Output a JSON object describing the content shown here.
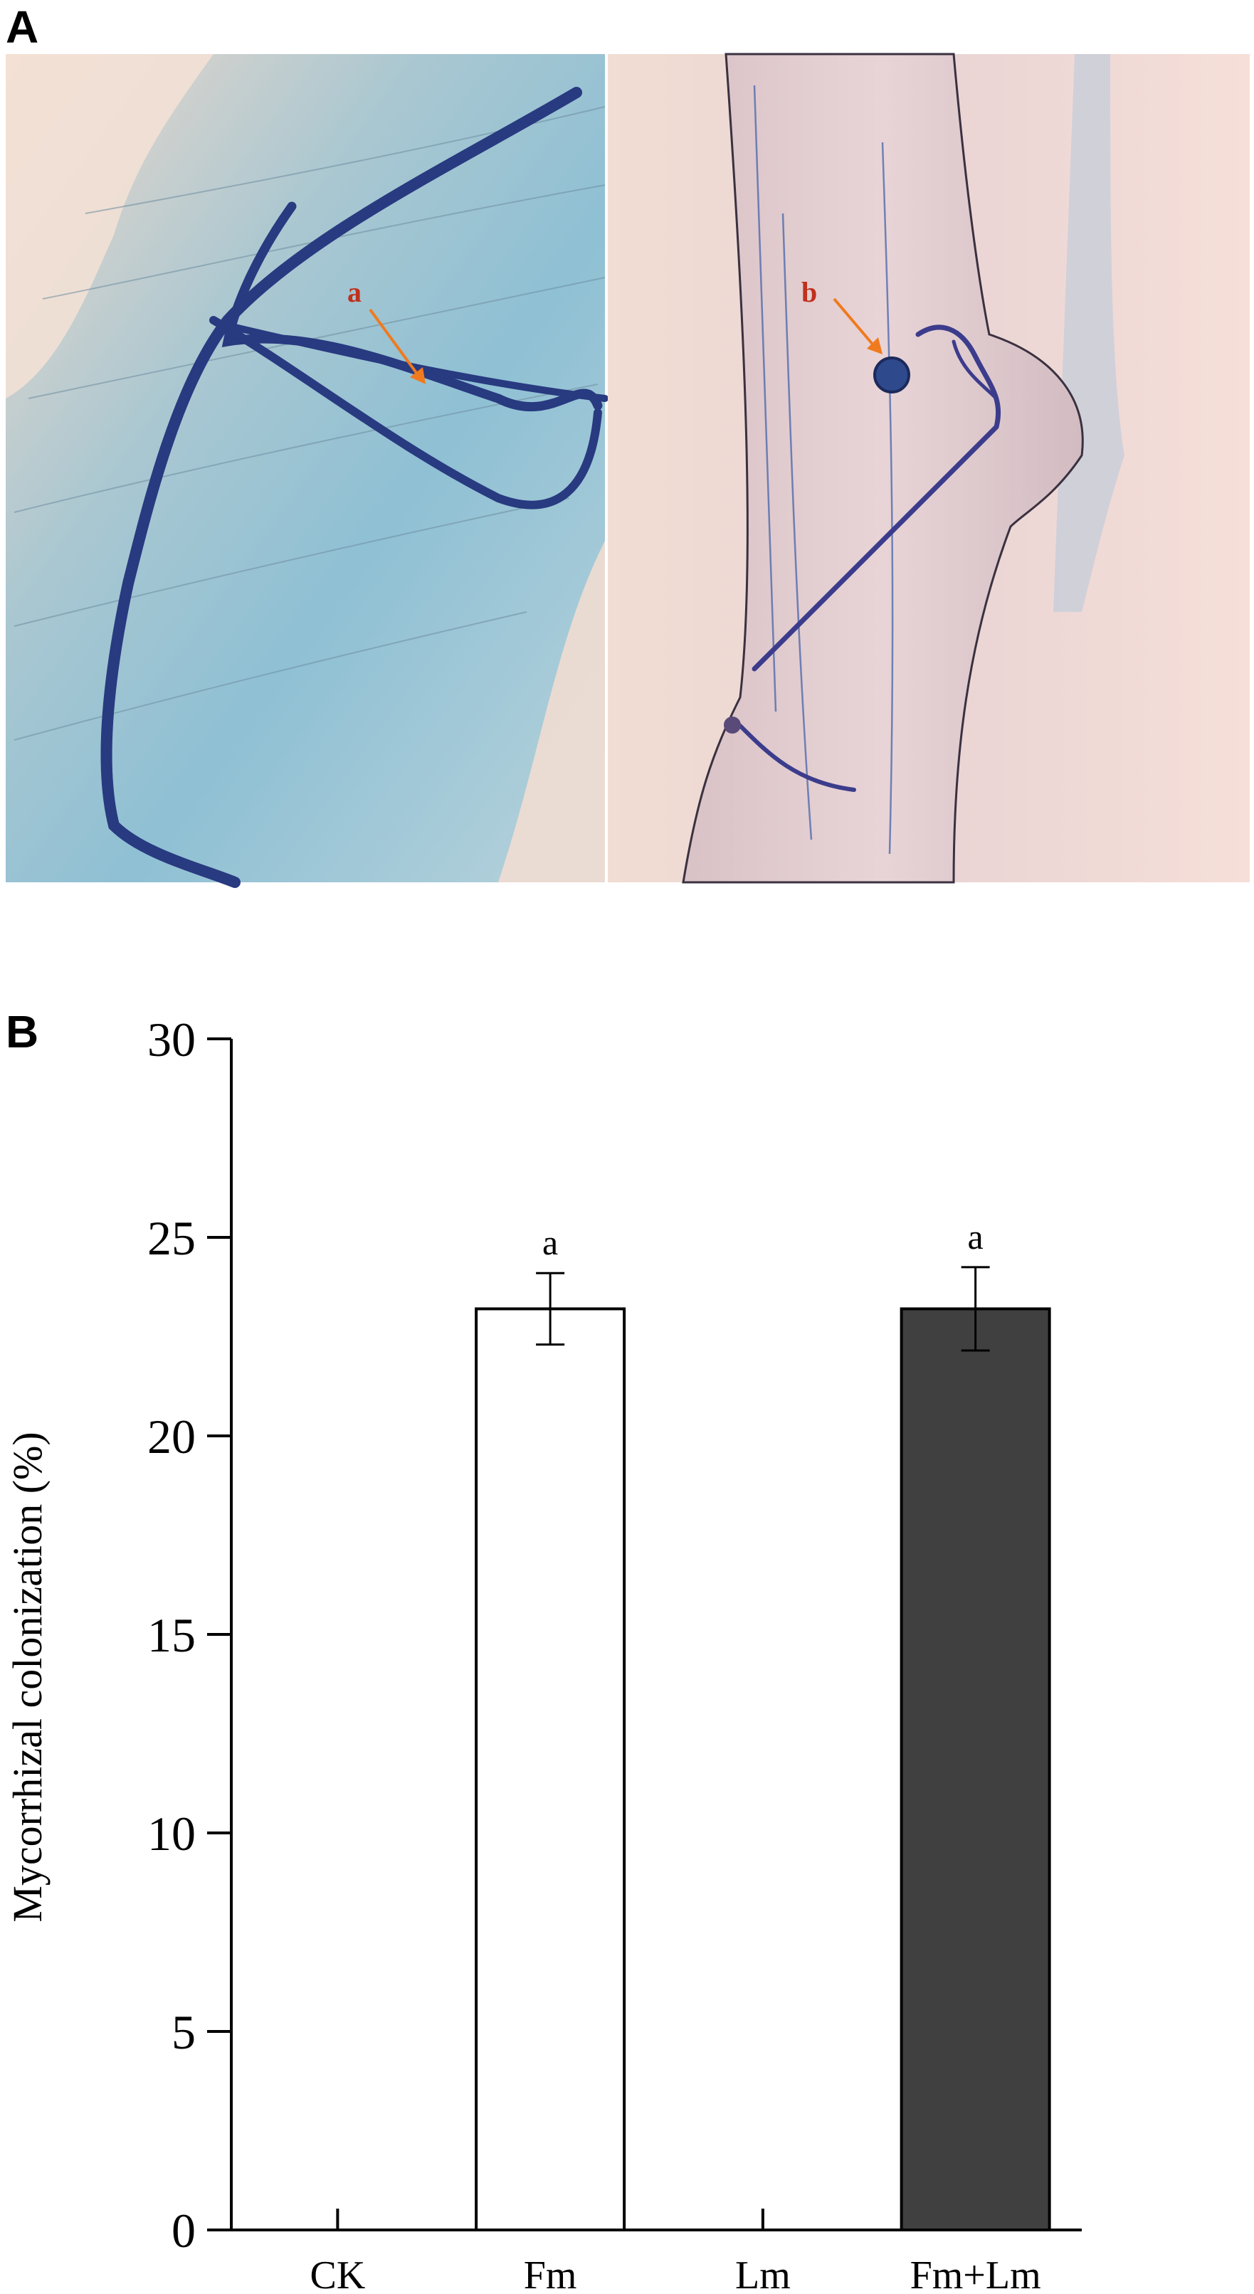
{
  "panel_a": {
    "label": "A",
    "left_image": {
      "annotation": "a"
    },
    "right_image": {
      "annotation": "b"
    }
  },
  "panel_b": {
    "label": "B"
  },
  "colors": {
    "bar_outline": "#000000",
    "fm_fill": "#ffffff",
    "fmlm_fill": "#404040",
    "annotation_arrow": "#f07a1e",
    "annotation_text": "#c0301c"
  },
  "chart_data": {
    "type": "bar",
    "ylabel": "Mycorrhizal colonization (%)",
    "xlabel": "",
    "ylim": [
      0,
      30
    ],
    "yticks": [
      0,
      5,
      10,
      15,
      20,
      25,
      30
    ],
    "categories": [
      "CK",
      "Fm",
      "Lm",
      "Fm+Lm"
    ],
    "values": [
      0,
      23.2,
      0,
      23.2
    ],
    "errors": [
      0,
      0.9,
      0,
      1.05
    ],
    "significance_letters": [
      "",
      "a",
      "",
      "a"
    ],
    "bar_colors": [
      "#ffffff",
      "#ffffff",
      "#ffffff",
      "#404040"
    ],
    "grid": false,
    "legend": "none"
  }
}
